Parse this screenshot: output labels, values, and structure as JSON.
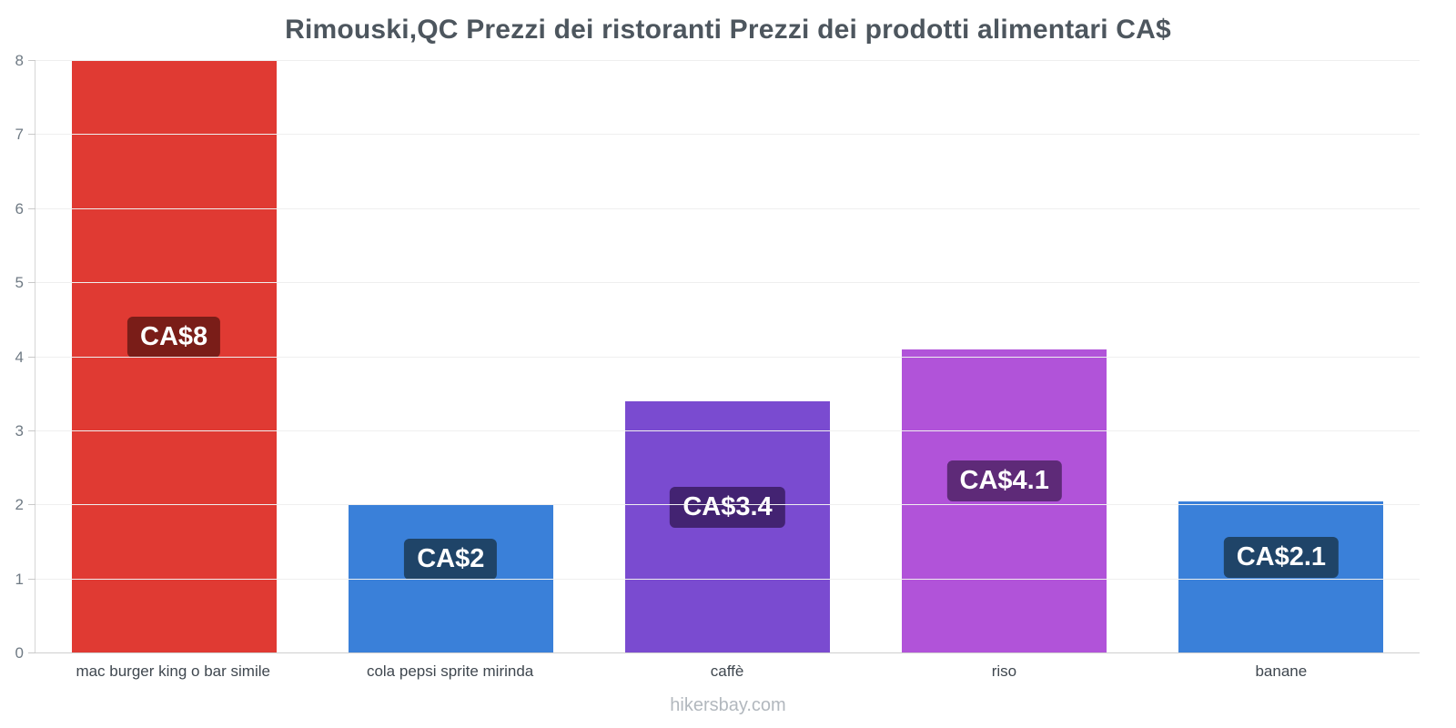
{
  "title": "Rimouski,QC Prezzi dei ristoranti Prezzi dei prodotti alimentari CA$",
  "footer": "hikersbay.com",
  "chart_data": {
    "type": "bar",
    "title": "Rimouski,QC Prezzi dei ristoranti Prezzi dei prodotti alimentari CA$",
    "currency": "CA$",
    "categories": [
      "mac burger king o bar simile",
      "cola pepsi sprite mirinda",
      "caffè",
      "riso",
      "banane"
    ],
    "values": [
      8,
      2,
      3.4,
      4.1,
      2.05
    ],
    "value_labels": [
      "CA$8",
      "CA$2",
      "CA$3.4",
      "CA$4.1",
      "CA$2.1"
    ],
    "bar_colors": [
      "#e03a33",
      "#3a80d9",
      "#7a4bd0",
      "#b153d9",
      "#3a80d9"
    ],
    "label_bg_colors": [
      "#7a1d18",
      "#1f4468",
      "#432372",
      "#5e2a78",
      "#1f4468"
    ],
    "xlabel": "",
    "ylabel": "",
    "ylim": [
      0,
      8
    ],
    "yticks": [
      0,
      1,
      2,
      3,
      4,
      5,
      6,
      7,
      8
    ],
    "grid": true,
    "legend": "none"
  }
}
